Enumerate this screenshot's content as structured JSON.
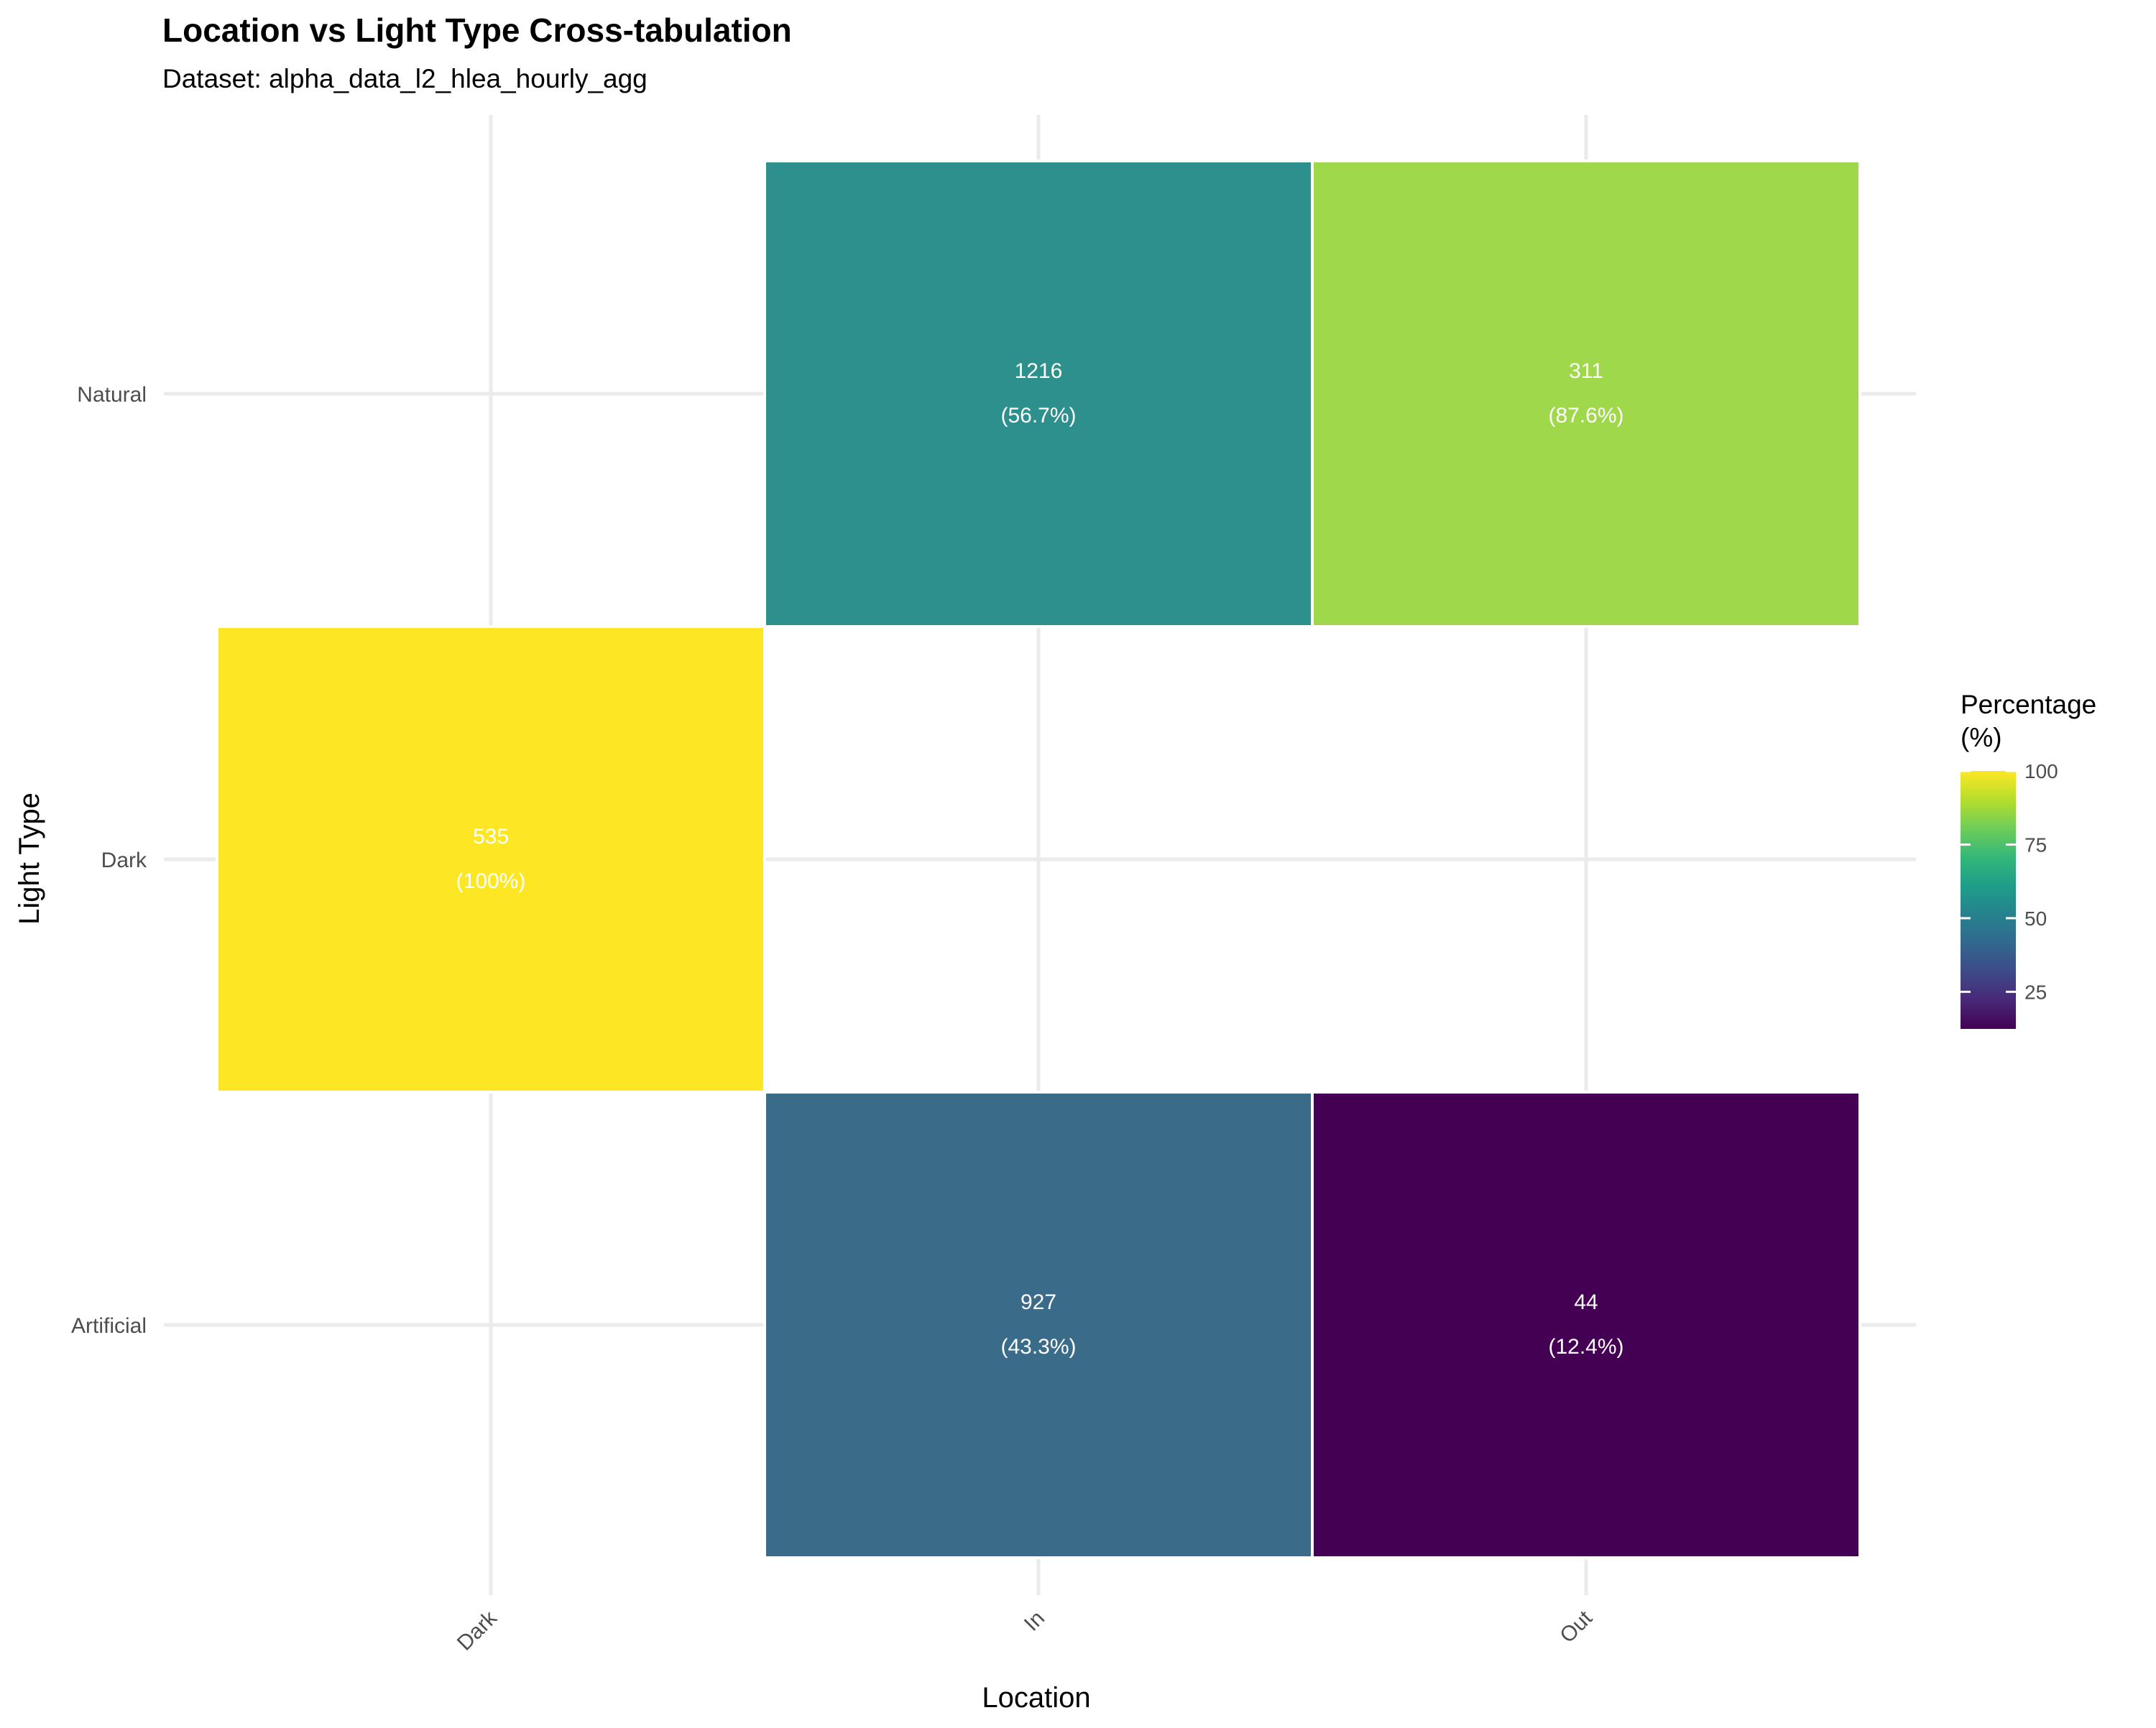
{
  "chart_data": {
    "type": "heatmap",
    "title": "Location vs Light Type Cross-tabulation",
    "subtitle": "Dataset: alpha_data_l2_hlea_hourly_agg",
    "xlabel": "Location",
    "ylabel": "Light Type",
    "x_categories": [
      "Dark",
      "In",
      "Out"
    ],
    "y_categories": [
      "Artificial",
      "Dark",
      "Natural"
    ],
    "cells": [
      {
        "x": "In",
        "y": "Natural",
        "count": "1216",
        "pct_label": "(56.7%)",
        "pct": 56.7,
        "color": "#2d908c"
      },
      {
        "x": "Out",
        "y": "Natural",
        "count": "311",
        "pct_label": "(87.6%)",
        "pct": 87.6,
        "color": "#a0d84b"
      },
      {
        "x": "Dark",
        "y": "Dark",
        "count": "535",
        "pct_label": "(100%)",
        "pct": 100,
        "color": "#fde725"
      },
      {
        "x": "In",
        "y": "Artificial",
        "count": "927",
        "pct_label": "(43.3%)",
        "pct": 43.3,
        "color": "#3a6b89"
      },
      {
        "x": "Out",
        "y": "Artificial",
        "count": "44",
        "pct_label": "(12.4%)",
        "pct": 12.4,
        "color": "#440154"
      }
    ],
    "legend": {
      "title_line1": "Percentage",
      "title_line2": "(%)",
      "min": 12.4,
      "max": 100,
      "ticks": [
        {
          "value": 100,
          "label": "100"
        },
        {
          "value": 75,
          "label": "75"
        },
        {
          "value": 50,
          "label": "50"
        },
        {
          "value": 25,
          "label": "25"
        }
      ],
      "colors": [
        "#440154",
        "#482878",
        "#3e4a89",
        "#31688e",
        "#26828e",
        "#1f9e89",
        "#35b779",
        "#6ece58",
        "#b5de2b",
        "#fde725"
      ],
      "placement": "right"
    },
    "grid": true
  }
}
